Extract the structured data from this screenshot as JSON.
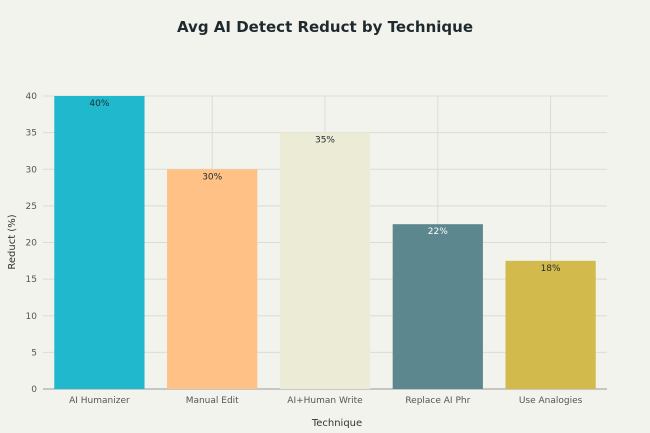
{
  "chart_data": {
    "type": "bar",
    "title": "Avg AI Detect Reduct by Technique",
    "xlabel": "Technique",
    "ylabel": "Reduct (%)",
    "categories": [
      "AI Humanizer",
      "Manual Edit",
      "AI+Human Write",
      "Replace AI Phr",
      "Use Analogies"
    ],
    "values": [
      40,
      30,
      35,
      22.5,
      17.5
    ],
    "data_labels": [
      "40%",
      "30%",
      "35%",
      "22%",
      "18%"
    ],
    "colors": [
      "#1fb8cd",
      "#ffc185",
      "#eceb d5",
      "#5d878f",
      "#d2ba4c"
    ],
    "yticks": [
      0,
      5,
      10,
      15,
      20,
      25,
      30,
      35,
      40
    ],
    "ylim": [
      0,
      40
    ],
    "grid": true
  }
}
